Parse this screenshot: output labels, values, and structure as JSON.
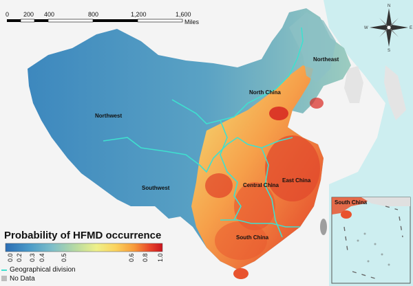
{
  "map": {
    "regions": {
      "northeast": "Northeast",
      "north_china": "North China",
      "northwest": "Northwest",
      "southwest": "Southwest",
      "central_china": "Central China",
      "east_china": "East China",
      "south_china": "South China"
    },
    "inset": {
      "label": "South China"
    }
  },
  "scale_bar": {
    "ticks": [
      "0",
      "200",
      "400",
      "800",
      "1,200",
      "1,600"
    ],
    "unit": "Miles"
  },
  "compass": {
    "n": "N",
    "s": "S",
    "e": "E",
    "w": "W"
  },
  "legend": {
    "title": "Probability of HFMD occurrence",
    "ticks": [
      "0.0",
      "0.2",
      "0.3",
      "0.4",
      "0.5",
      "0.6",
      "0.8",
      "1.0"
    ],
    "division_label": "Geographical division",
    "nodata_label": "No Data",
    "colors": [
      "#2b6db4",
      "#4a9ac8",
      "#7fbfc9",
      "#b9dba1",
      "#eef08a",
      "#fbd45e",
      "#f79a3a",
      "#e8452a",
      "#c9141e"
    ]
  },
  "colors": {
    "sea": "#cdeef0",
    "land_background": "#f2f2f2",
    "boundary": "#3fe0cf"
  }
}
